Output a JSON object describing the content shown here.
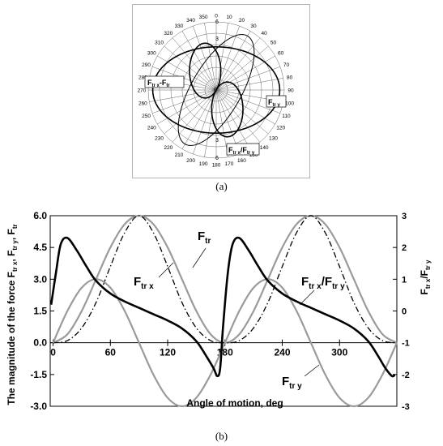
{
  "captions": {
    "a": "(a)",
    "b": "(b)"
  },
  "chart_data": [
    {
      "type": "polar",
      "angle_ticks": [
        "0",
        "10",
        "20",
        "30",
        "40",
        "50",
        "60",
        "70",
        "80",
        "90",
        "100",
        "110",
        "120",
        "130",
        "140",
        "150",
        "160",
        "170",
        "180",
        "190",
        "200",
        "210",
        "220",
        "230",
        "240",
        "250",
        "260",
        "270",
        "280",
        "290",
        "300",
        "310",
        "320",
        "330",
        "340",
        "350"
      ],
      "radial_ticks": [
        "6",
        "3",
        "3",
        "6"
      ],
      "center_label": "0",
      "radial_max": 6,
      "curve_labels": {
        "ftr": "F",
        "ftr_sub": "tr y",
        "ratio": "F",
        "ratio_sub": "tr x",
        "ratio_mid": "/F",
        "ratio_sub2": "tr y",
        "combo": "F",
        "combo_sub": "tr x",
        "combo_mid": "-F",
        "combo_sub2": "tr"
      },
      "series": [
        {
          "key": "ellipse",
          "style": "thick",
          "a": 5.6,
          "b": 3.8
        },
        {
          "key": "lemniscate",
          "style": "thick",
          "a": 4.6
        },
        {
          "key": "rotated",
          "style": "thin",
          "a": 5.5,
          "b": 2.2,
          "tilt_deg": 30
        }
      ]
    },
    {
      "type": "line",
      "xlabel": "Angle of motion, deg",
      "ylabel": "The magnitude of the force F",
      "ylabel_sub": "tr x",
      "ylabel_mid": ", F",
      "ylabel_sub2": "tr y",
      "ylabel_end": ", F",
      "ylabel_sub3": "tr",
      "y2label": "F",
      "y2label_sub": "tr x",
      "y2label_mid": "/F",
      "y2label_sub2": "tr y",
      "xlim": [
        -3,
        360
      ],
      "ylim": [
        -3.0,
        6.0
      ],
      "y2lim": [
        -3,
        3
      ],
      "xticks": [
        "0",
        "60",
        "120",
        "180",
        "240",
        "300"
      ],
      "yticks": [
        "6.0",
        "4.5",
        "3.0",
        "1.5",
        "0.0",
        "-1.5",
        "-3.0"
      ],
      "y2ticks": [
        "3",
        "2",
        "1",
        "0",
        "-1",
        "-2",
        "-3"
      ],
      "series": [
        {
          "name": "F",
          "name_sub": "tr",
          "style": "gray-solid",
          "x": [
            0,
            15,
            30,
            45,
            60,
            75,
            90,
            105,
            120,
            135,
            150,
            165,
            180,
            195,
            210,
            225,
            240,
            255,
            270,
            285,
            300,
            315,
            330,
            345,
            360
          ],
          "y": [
            0.0,
            0.4,
            1.5,
            3.0,
            4.5,
            5.6,
            6.0,
            5.6,
            4.5,
            3.0,
            1.5,
            0.4,
            0.0,
            0.4,
            1.5,
            3.0,
            4.5,
            5.6,
            6.0,
            5.6,
            4.5,
            3.0,
            1.5,
            0.4,
            0.0
          ]
        },
        {
          "name": "F",
          "name_sub": "tr x",
          "style": "black-dashdot",
          "x": [
            0,
            15,
            30,
            45,
            60,
            75,
            90,
            105,
            120,
            135,
            150,
            165,
            180,
            195,
            210,
            225,
            240,
            255,
            270,
            285,
            300,
            315,
            330,
            345,
            360
          ],
          "y": [
            0.0,
            0.1,
            0.7,
            1.9,
            3.6,
            5.2,
            6.0,
            5.2,
            3.6,
            1.9,
            0.7,
            0.1,
            0.0,
            0.1,
            0.7,
            1.9,
            3.6,
            5.2,
            6.0,
            5.2,
            3.6,
            1.9,
            0.7,
            0.1,
            0.0
          ]
        },
        {
          "name": "F",
          "name_sub": "tr y",
          "style": "gray-solid",
          "x": [
            0,
            15,
            30,
            45,
            60,
            75,
            90,
            105,
            120,
            135,
            150,
            165,
            180,
            195,
            210,
            225,
            240,
            255,
            270,
            285,
            300,
            315,
            330,
            345,
            360
          ],
          "y": [
            0.0,
            1.5,
            2.6,
            3.0,
            2.6,
            1.5,
            0.0,
            -1.5,
            -2.6,
            -3.0,
            -2.6,
            -1.5,
            0.0,
            1.5,
            2.6,
            3.0,
            2.6,
            1.5,
            0.0,
            -1.5,
            -2.6,
            -3.0,
            -2.6,
            -1.5,
            0.0
          ]
        },
        {
          "name": "F",
          "name_sub": "tr x",
          "name_mid": "/F",
          "name_sub2": "tr y",
          "style": "black-thick",
          "axis": "right",
          "x": [
            -2,
            3,
            8,
            15,
            25,
            35,
            45,
            60,
            75,
            90,
            105,
            120,
            135,
            150,
            160,
            168,
            172,
            175,
            178,
            183,
            188,
            195,
            205,
            215,
            225,
            240,
            255,
            270,
            285,
            300,
            315,
            330,
            340,
            348,
            355,
            358
          ],
          "y": [
            0.2,
            1.2,
            2.1,
            2.3,
            1.9,
            1.4,
            0.95,
            0.55,
            0.3,
            0.1,
            -0.1,
            -0.3,
            -0.55,
            -0.95,
            -1.4,
            -1.8,
            -2.05,
            -1.8,
            -0.5,
            1.2,
            2.1,
            2.3,
            1.9,
            1.4,
            0.95,
            0.55,
            0.3,
            0.1,
            -0.1,
            -0.3,
            -0.55,
            -0.95,
            -1.4,
            -1.8,
            -2.05,
            -2.0
          ]
        }
      ]
    }
  ]
}
